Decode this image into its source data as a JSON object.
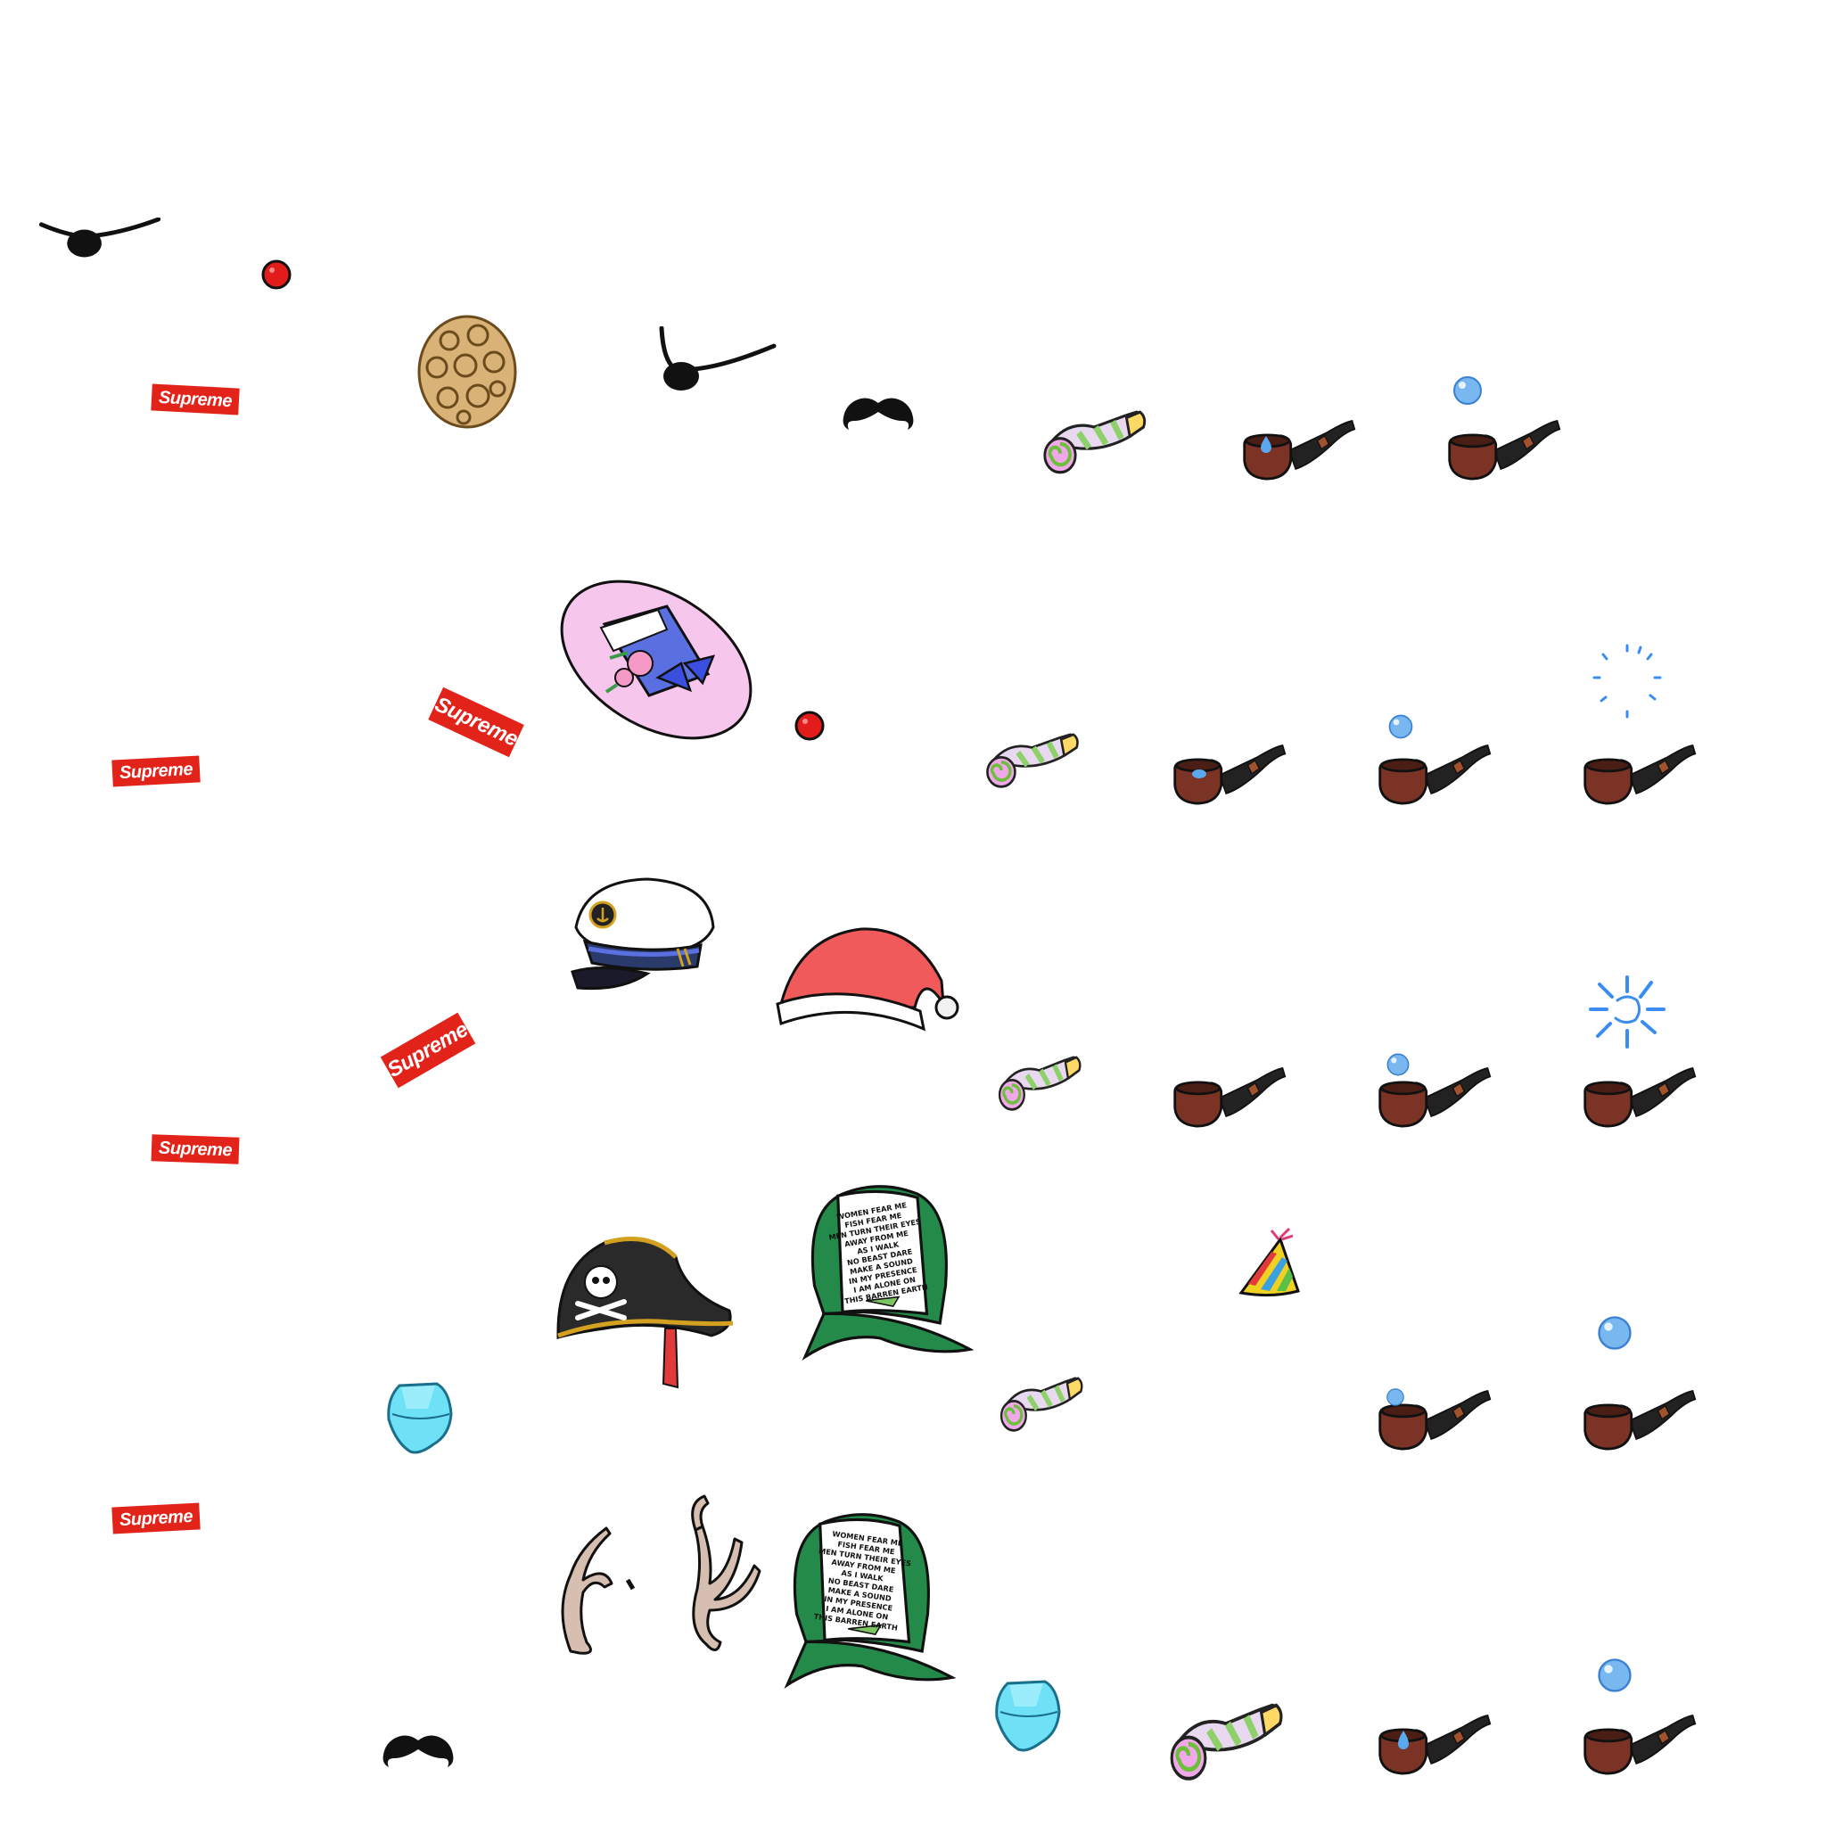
{
  "sheet": {
    "brand_logo": "Supreme",
    "cap_lines": [
      "WOMEN FEAR ME",
      "FISH FEAR ME",
      "MEN TURN THEIR EYES",
      "AWAY FROM ME",
      "AS I WALK",
      "NO BEAST DARE",
      "MAKE A SOUND",
      "IN MY PRESENCE",
      "I AM ALONE ON",
      "THIS BARREN EARTH"
    ]
  },
  "colors": {
    "logo_red": "#e2231a",
    "pipe_brown": "#7a3324",
    "pipe_stem": "#222222",
    "bubble_blue": "#78b7f0",
    "santa_red": "#f05a5a",
    "cap_green": "#238a4a",
    "bonnet_pink": "#f6c6ec",
    "mask_cyan": "#6fe1f7"
  }
}
